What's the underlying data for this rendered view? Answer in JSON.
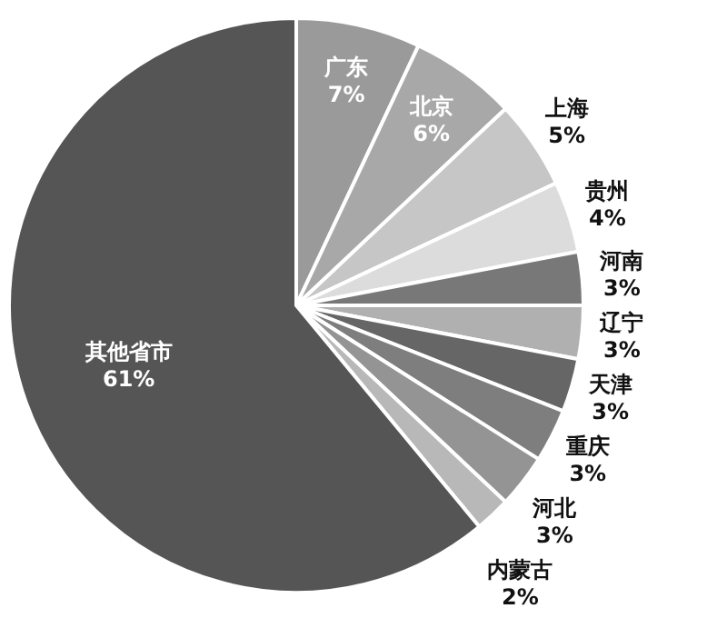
{
  "chart_data": {
    "type": "pie",
    "categories": [
      "广东",
      "北京",
      "上海",
      "贵州",
      "河南",
      "辽宁",
      "天津",
      "重庆",
      "河北",
      "内蒙古",
      "其他省市"
    ],
    "values": [
      7,
      6,
      5,
      4,
      3,
      3,
      3,
      3,
      3,
      2,
      61
    ],
    "value_labels": [
      "7%",
      "6%",
      "5%",
      "4%",
      "3%",
      "3%",
      "3%",
      "3%",
      "3%",
      "2%",
      "61%"
    ],
    "colors": [
      "#9a9a9a",
      "#a8a8a8",
      "#c6c6c6",
      "#dcdcdc",
      "#787878",
      "#b0b0b0",
      "#666666",
      "#7e7e7e",
      "#949494",
      "#b8b8b8",
      "#555555"
    ]
  }
}
